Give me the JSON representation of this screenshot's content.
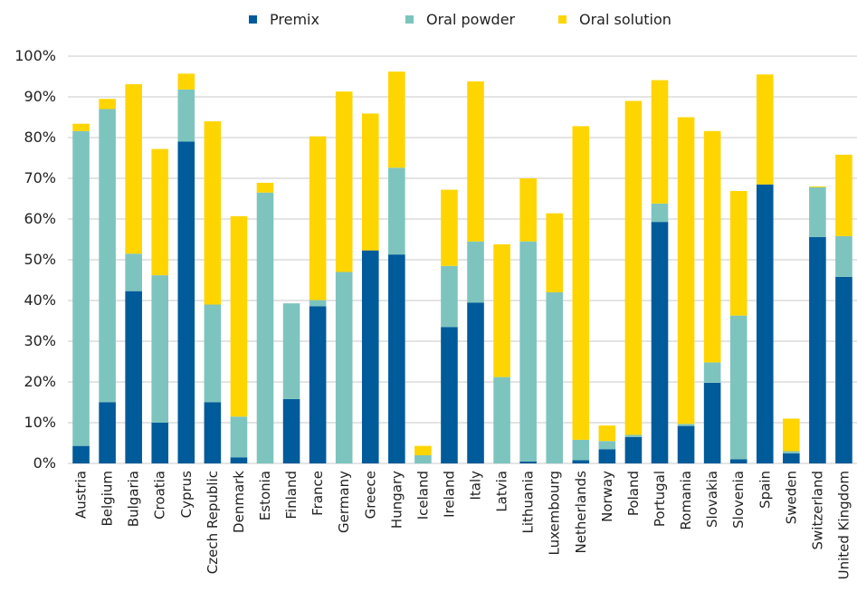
{
  "chart_data": {
    "type": "bar",
    "stacked": true,
    "categories": [
      "Austria",
      "Belgium",
      "Bulgaria",
      "Croatia",
      "Cyprus",
      "Czech Republic",
      "Denmark",
      "Estonia",
      "Finland",
      "France",
      "Germany",
      "Greece",
      "Hungary",
      "Iceland",
      "Ireland",
      "Italy",
      "Latvia",
      "Lithuania",
      "Luxembourg",
      "Netherlands",
      "Norway",
      "Poland",
      "Portugal",
      "Romania",
      "Slovakia",
      "Slovenia",
      "Spain",
      "Sweden",
      "Switzerland",
      "United Kingdom"
    ],
    "series": [
      {
        "name": "Premix",
        "color": "#005b9a",
        "values": [
          4.3,
          15,
          42.3,
          10,
          79,
          15,
          1.5,
          0,
          15.8,
          38.6,
          0,
          52.3,
          51.3,
          0,
          33.5,
          39.5,
          0,
          0.5,
          0,
          0.8,
          3.5,
          6.5,
          59.3,
          9.2,
          19.8,
          1,
          68.5,
          2.5,
          55.6,
          45.8
        ]
      },
      {
        "name": "Oral powder",
        "color": "#7dc4bf",
        "values": [
          77.3,
          72,
          9.2,
          36.2,
          12.8,
          24,
          10,
          66.5,
          23.5,
          1.5,
          47,
          0,
          21.3,
          2,
          15,
          15,
          21.2,
          54,
          42,
          5,
          2,
          0.5,
          4.5,
          0.5,
          5,
          35.3,
          0,
          0.5,
          12.2,
          10
        ]
      },
      {
        "name": "Oral solution",
        "color": "#ffd500",
        "values": [
          1.8,
          2.5,
          41.6,
          31,
          3.9,
          45,
          49.2,
          2.4,
          0,
          40.2,
          44.3,
          33.6,
          23.6,
          2.3,
          18.7,
          39.3,
          32.6,
          15.5,
          19.4,
          77,
          3.8,
          82,
          30.3,
          75.3,
          56.8,
          30.6,
          27,
          8,
          0.2,
          20
        ]
      }
    ],
    "legend": {
      "position": "top",
      "entries": [
        "Premix",
        "Oral powder",
        "Oral solution"
      ]
    },
    "yticks": [
      "0%",
      "10%",
      "20%",
      "30%",
      "40%",
      "50%",
      "60%",
      "70%",
      "80%",
      "90%",
      "100%"
    ],
    "ylim": [
      0,
      100
    ],
    "grid": true
  }
}
